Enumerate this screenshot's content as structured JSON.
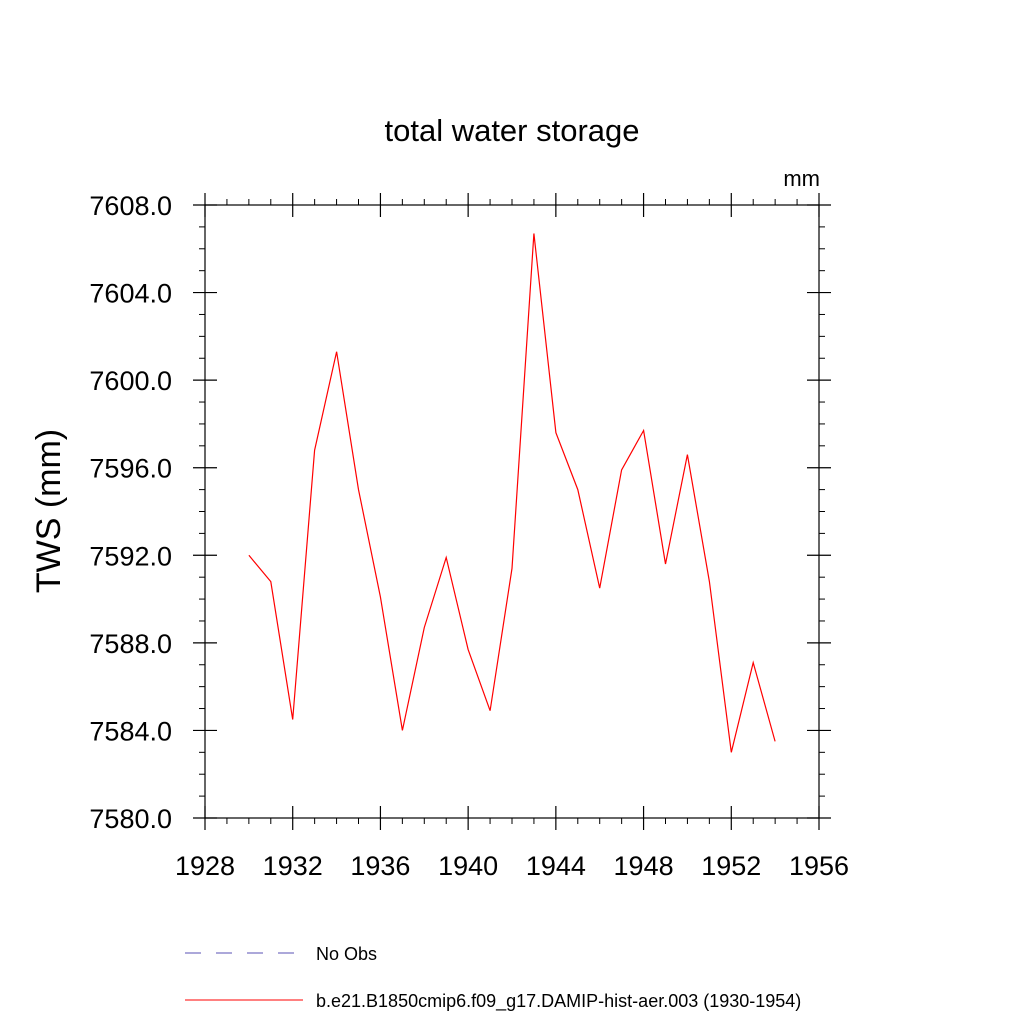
{
  "chart_data": {
    "type": "line",
    "title": "total water storage",
    "units_label": "mm",
    "ylabel": "TWS  (mm)",
    "xlabel": "",
    "xlim": [
      1928,
      1956
    ],
    "ylim": [
      7580.0,
      7608.0
    ],
    "x_ticks": [
      1928,
      1932,
      1936,
      1940,
      1944,
      1948,
      1952,
      1956
    ],
    "y_ticks": [
      "7580.0",
      "7584.0",
      "7588.0",
      "7592.0",
      "7596.0",
      "7600.0",
      "7604.0",
      "7608.0"
    ],
    "grid": false,
    "legend_position": "bottom",
    "series": [
      {
        "name": "No Obs",
        "color": "#5a50b4",
        "style": "dashed",
        "x": [],
        "y": []
      },
      {
        "name": "b.e21.B1850cmip6.f09_g17.DAMIP-hist-aer.003 (1930-1954)",
        "color": "#ff0000",
        "style": "solid",
        "x": [
          1930,
          1931,
          1932,
          1933,
          1934,
          1935,
          1936,
          1937,
          1938,
          1939,
          1940,
          1941,
          1942,
          1943,
          1944,
          1945,
          1946,
          1947,
          1948,
          1949,
          1950,
          1951,
          1952,
          1953,
          1954
        ],
        "y": [
          7592.0,
          7590.8,
          7584.5,
          7596.8,
          7601.3,
          7595.0,
          7590.1,
          7584.0,
          7588.7,
          7591.9,
          7587.7,
          7584.9,
          7591.4,
          7606.7,
          7597.6,
          7595.0,
          7590.5,
          7595.9,
          7597.7,
          7591.6,
          7596.6,
          7590.8,
          7583.0,
          7587.1,
          7583.5
        ]
      }
    ]
  }
}
